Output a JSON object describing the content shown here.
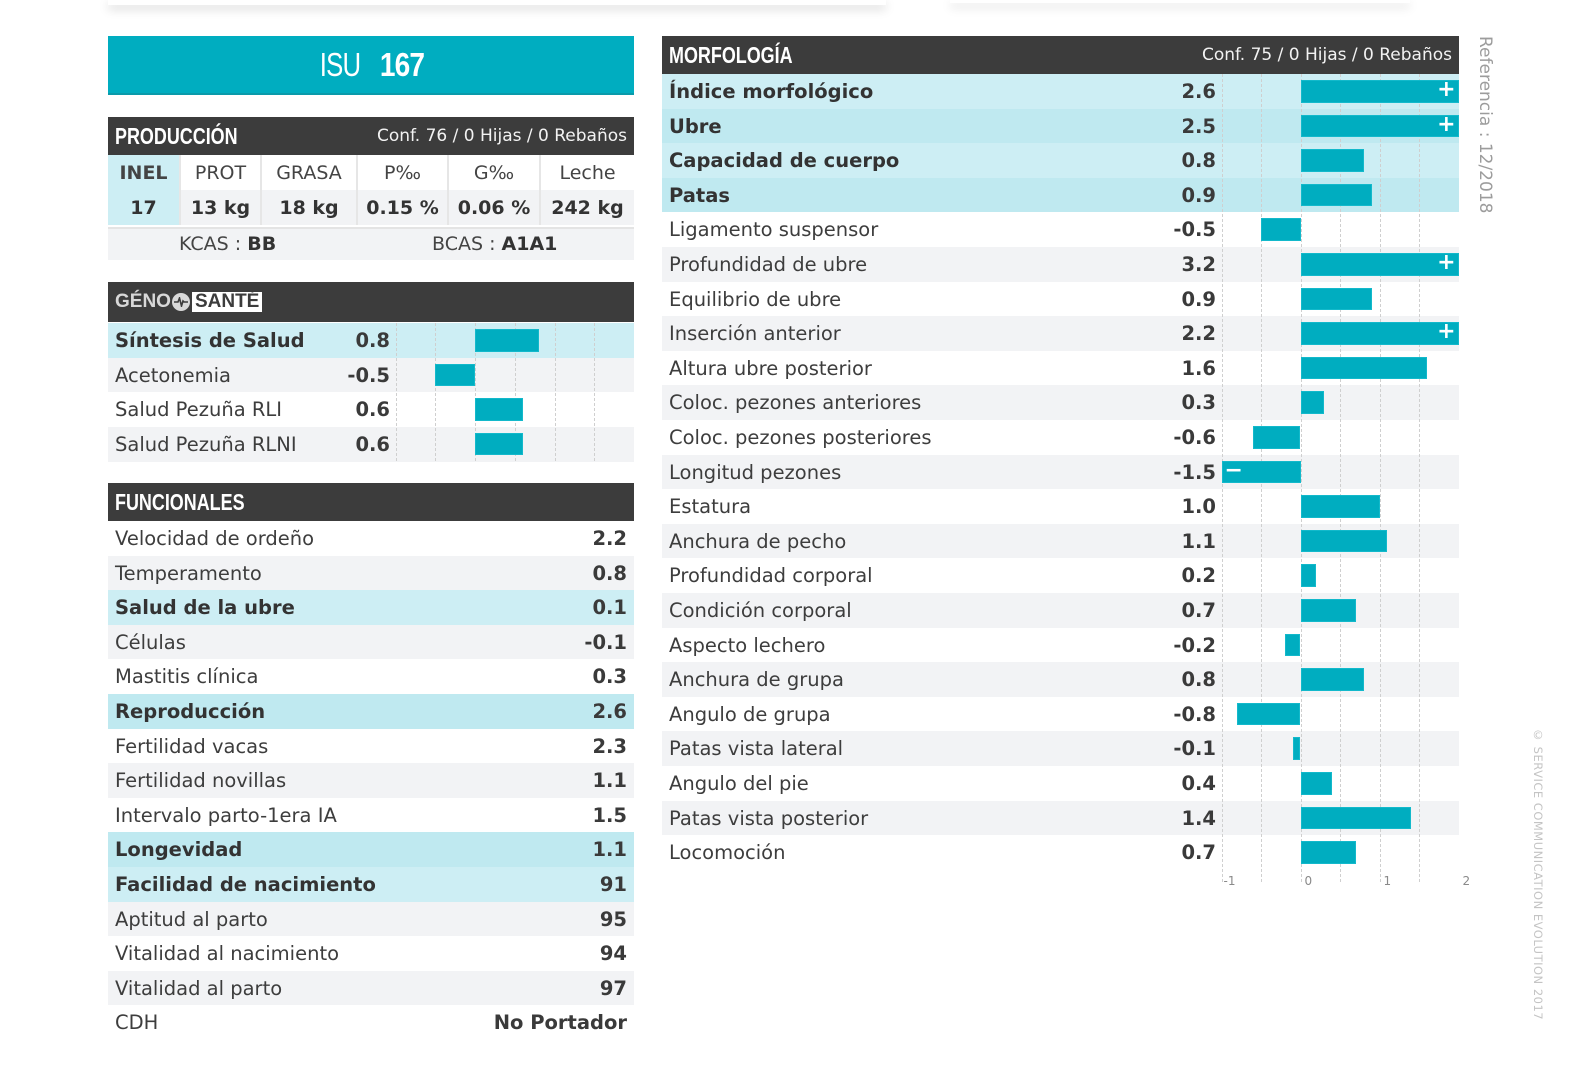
{
  "header": {
    "code_label": "ISU",
    "code_value": "167"
  },
  "production": {
    "title": "PRODUCCIÓN",
    "conf": "Conf. 76 / 0 Hijas / 0 Rebaños",
    "columns": [
      "INEL",
      "PROT",
      "GRASA",
      "P‰",
      "G‰",
      "Leche"
    ],
    "values": [
      "17",
      "13 kg",
      "18 kg",
      "0.15 %",
      "0.06 %",
      "242 kg"
    ],
    "kcas_label": "KCAS : ",
    "kcas_value": "BB",
    "bcas_label": "BCAS : ",
    "bcas_value": "A1A1"
  },
  "geno_sante": {
    "logo_part1": "GÉNO",
    "logo_part2": "SANTÉ",
    "icon": "heartbeat-icon"
  },
  "functional": {
    "title": "FUNCIONALES",
    "rows": [
      {
        "label": "Velocidad de ordeño",
        "value": "2.2",
        "style": "white"
      },
      {
        "label": "Temperamento",
        "value": "0.8",
        "style": "grey"
      },
      {
        "label": "Salud de la ubre",
        "value": "0.1",
        "style": "cyan1",
        "bold": true
      },
      {
        "label": "Células",
        "value": "-0.1",
        "style": "grey"
      },
      {
        "label": "Mastitis clínica",
        "value": "0.3",
        "style": "white"
      },
      {
        "label": "Reproducción",
        "value": "2.6",
        "style": "cyan2",
        "bold": true
      },
      {
        "label": "Fertilidad vacas",
        "value": "2.3",
        "style": "white"
      },
      {
        "label": "Fertilidad novillas",
        "value": "1.1",
        "style": "grey"
      },
      {
        "label": "Intervalo parto-1era IA",
        "value": "1.5",
        "style": "white"
      },
      {
        "label": "Longevidad",
        "value": "1.1",
        "style": "cyan2",
        "bold": true
      },
      {
        "label": "Facilidad de nacimiento",
        "value": "91",
        "style": "cyan1",
        "bold": true
      },
      {
        "label": "Aptitud al parto",
        "value": "95",
        "style": "grey"
      },
      {
        "label": "Vitalidad al nacimiento",
        "value": "94",
        "style": "white"
      },
      {
        "label": "Vitalidad al parto",
        "value": "97",
        "style": "grey"
      },
      {
        "label": "CDH",
        "value": "No Portador",
        "style": "white"
      }
    ]
  },
  "morphology": {
    "title": "MORFOLOGÍA",
    "conf": "Conf. 75 / 0 Hijas / 0 Rebaños"
  },
  "side": {
    "reference": "Referencia : 12/2018",
    "copyright": "© SERVICE COMMUNICATION EVOLUTION 2017"
  },
  "colors": {
    "accent": "#00adc0",
    "header_dark": "#3c3c3c",
    "highlight_light": "#cdeef4",
    "highlight": "#bfe9f0",
    "stripe": "#f2f3f5"
  },
  "chart_data": [
    {
      "type": "bar",
      "orientation": "horizontal",
      "title": "GÉNO SANTÉ",
      "categories": [
        "Síntesis de Salud",
        "Acetonemia",
        "Salud Pezuña RLI",
        "Salud Pezuña RLNI"
      ],
      "values": [
        0.8,
        -0.5,
        0.6,
        0.6
      ],
      "labels": [
        "0.8",
        "-0.5",
        "0.6",
        "0.6"
      ],
      "bold": [
        true,
        false,
        false,
        false
      ],
      "styles": [
        "cyan1",
        "grey",
        "white",
        "grey"
      ],
      "xlim": [
        -1,
        1.5
      ],
      "grid_step": 0.5,
      "grid": true
    },
    {
      "type": "bar",
      "orientation": "horizontal",
      "title": "MORFOLOGÍA",
      "categories": [
        "Índice morfológico",
        "Ubre",
        "Capacidad de cuerpo",
        "Patas",
        "Ligamento suspensor",
        "Profundidad de ubre",
        "Equilibrio de ubre",
        "Inserción anterior",
        "Altura ubre posterior",
        "Coloc. pezones anteriores",
        "Coloc. pezones posteriores",
        "Longitud pezones",
        "Estatura",
        "Anchura de pecho",
        "Profundidad corporal",
        "Condición corporal",
        "Aspecto lechero",
        "Anchura de grupa",
        "Angulo de grupa",
        "Patas vista lateral",
        "Angulo del pie",
        "Patas vista posterior",
        "Locomoción"
      ],
      "values": [
        2.6,
        2.5,
        0.8,
        0.9,
        -0.5,
        3.2,
        0.9,
        2.2,
        1.6,
        0.3,
        -0.6,
        -1.5,
        1.0,
        1.1,
        0.2,
        0.7,
        -0.2,
        0.8,
        -0.8,
        -0.1,
        0.4,
        1.4,
        0.7
      ],
      "labels": [
        "2.6",
        "2.5",
        "0.8",
        "0.9",
        "-0.5",
        "3.2",
        "0.9",
        "2.2",
        "1.6",
        "0.3",
        "-0.6",
        "-1.5",
        "1.0",
        "1.1",
        "0.2",
        "0.7",
        "-0.2",
        "0.8",
        "-0.8",
        "-0.1",
        "0.4",
        "1.4",
        "0.7"
      ],
      "bold": [
        true,
        true,
        true,
        true,
        false,
        false,
        false,
        false,
        false,
        false,
        false,
        false,
        false,
        false,
        false,
        false,
        false,
        false,
        false,
        false,
        false,
        false,
        false
      ],
      "styles": [
        "cyan1",
        "cyan2",
        "cyan1",
        "cyan2",
        "white",
        "grey",
        "white",
        "grey",
        "white",
        "grey",
        "white",
        "grey",
        "white",
        "grey",
        "white",
        "grey",
        "white",
        "grey",
        "white",
        "grey",
        "white",
        "grey",
        "white"
      ],
      "xlim": [
        -1,
        2
      ],
      "clip_markers": {
        "over": "+",
        "under": "−"
      },
      "x_ticks": [
        "-1",
        "0",
        "1",
        "2"
      ],
      "x_tick_values": [
        -1,
        0,
        1,
        2
      ],
      "grid_step": 0.5,
      "grid": true
    }
  ]
}
